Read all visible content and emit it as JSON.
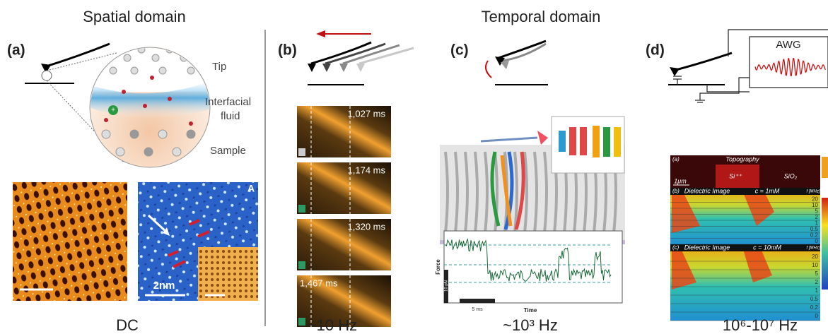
{
  "header": {
    "spatial_title": "Spatial domain",
    "temporal_title": "Temporal domain"
  },
  "panel_a": {
    "label": "(a)",
    "tip": "Tip",
    "fluid_line_1": "Interfacial",
    "fluid_line_2": "fluid",
    "sample": "Sample",
    "inset_letter": "A",
    "scale": "2nm",
    "frequency": "DC"
  },
  "panel_b": {
    "label": "(b)",
    "frames": [
      "1,027 ms",
      "1,174 ms",
      "1,320 ms",
      "1,467 ms"
    ],
    "frequency": "~10 Hz"
  },
  "panel_c": {
    "label": "(c)",
    "y_axis": "Force",
    "x_axis": "Time",
    "force_scale": "10 pN",
    "time_scale": "5 ms",
    "frequency": "~10³ Hz"
  },
  "panel_d": {
    "label": "(d)",
    "generator": "AWG",
    "frequency": "10⁶-10⁷ Hz",
    "topography": {
      "label": "(a)",
      "title": "Topography",
      "material_1": "Si⁺⁺",
      "material_2": "SiO₂",
      "scale": "1μm"
    },
    "dielectric_1": {
      "label": "(b)",
      "title": "Dielectric Image",
      "concentration": "c = 1mM",
      "unit": "f [MHz]",
      "ticks": [
        "20",
        "10",
        "5",
        "2",
        "1",
        "0.5",
        "0.2",
        "0"
      ]
    },
    "dielectric_2": {
      "label": "(c)",
      "title": "Dielectric Image",
      "concentration": "c = 10mM",
      "unit": "f [MHz]",
      "ticks": [
        "20",
        "10",
        "5",
        "2",
        "1",
        "0.5",
        "0.2",
        "0"
      ]
    }
  }
}
